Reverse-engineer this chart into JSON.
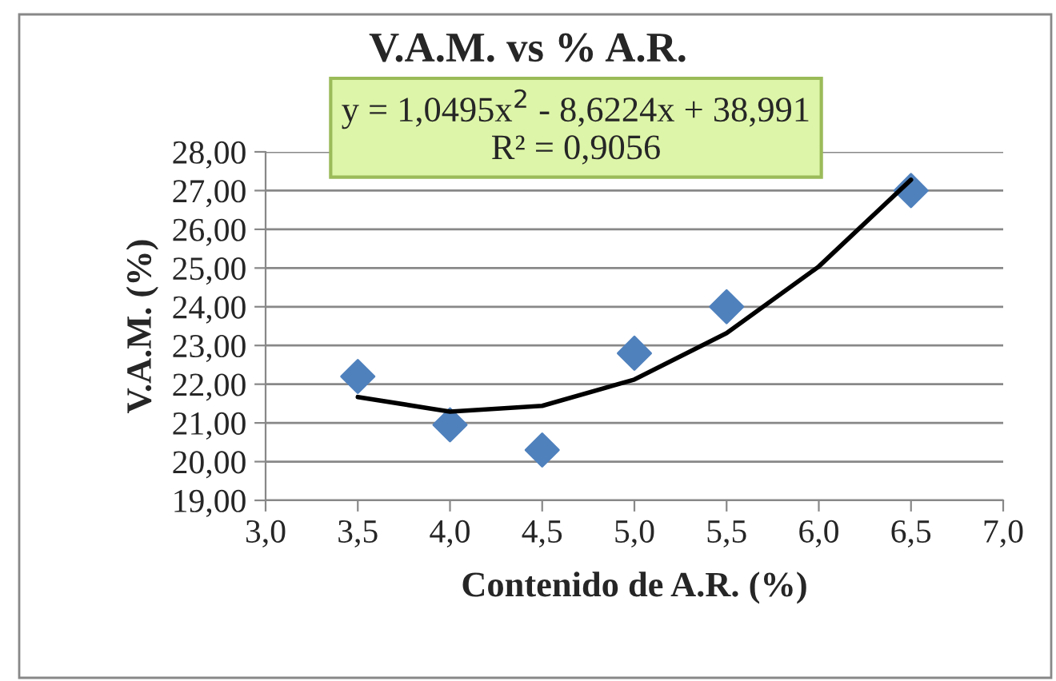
{
  "chart_data": {
    "type": "scatter",
    "title": "V.A.M. vs % A.R.",
    "xlabel": "Contenido de A.R. (%)",
    "ylabel": "V.A.M. (%)",
    "series": [
      {
        "color": "#4f81bd",
        "marker": "diamond",
        "x": [
          3.5,
          4.0,
          4.5,
          5.0,
          5.5,
          6.5
        ],
        "values": [
          22.2,
          20.95,
          20.3,
          22.8,
          24.0,
          27.0
        ]
      },
      {
        "type": "line",
        "color": "#000000",
        "x": [
          3.5,
          4.0,
          4.5,
          5.0,
          5.5,
          6.0,
          6.5
        ],
        "values": [
          21.67,
          21.29,
          21.44,
          22.12,
          23.32,
          25.04,
          27.28
        ]
      }
    ],
    "annotations": [
      "y = 1,0495x$^{2}$ - 8,6224x + 38,991\nR² = 0,9056"
    ],
    "xlim": [
      3.0,
      7.0
    ],
    "xticks": [
      {
        "value": 3.0,
        "label": "3,0"
      },
      {
        "value": 3.5,
        "label": "3,5"
      },
      {
        "value": 4.0,
        "label": "4,0"
      },
      {
        "value": 4.5,
        "label": "4,5"
      },
      {
        "value": 5.0,
        "label": "5,0"
      },
      {
        "value": 5.5,
        "label": "5,5"
      },
      {
        "value": 6.0,
        "label": "6,0"
      },
      {
        "value": 6.5,
        "label": "6,5"
      },
      {
        "value": 7.0,
        "label": "7,0"
      }
    ],
    "ylim": [
      19,
      28
    ],
    "yticks": [
      {
        "value": 19,
        "label": "19,00"
      },
      {
        "value": 20,
        "label": "20,00"
      },
      {
        "value": 21,
        "label": "21,00"
      },
      {
        "value": 22,
        "label": "22,00"
      },
      {
        "value": 23,
        "label": "23,00"
      },
      {
        "value": 24,
        "label": "24,00"
      },
      {
        "value": 25,
        "label": "25,00"
      },
      {
        "value": 26,
        "label": "26,00"
      },
      {
        "value": 27,
        "label": "27,00"
      },
      {
        "value": 28,
        "label": "28,00"
      }
    ],
    "grid": "y",
    "legend": false
  }
}
